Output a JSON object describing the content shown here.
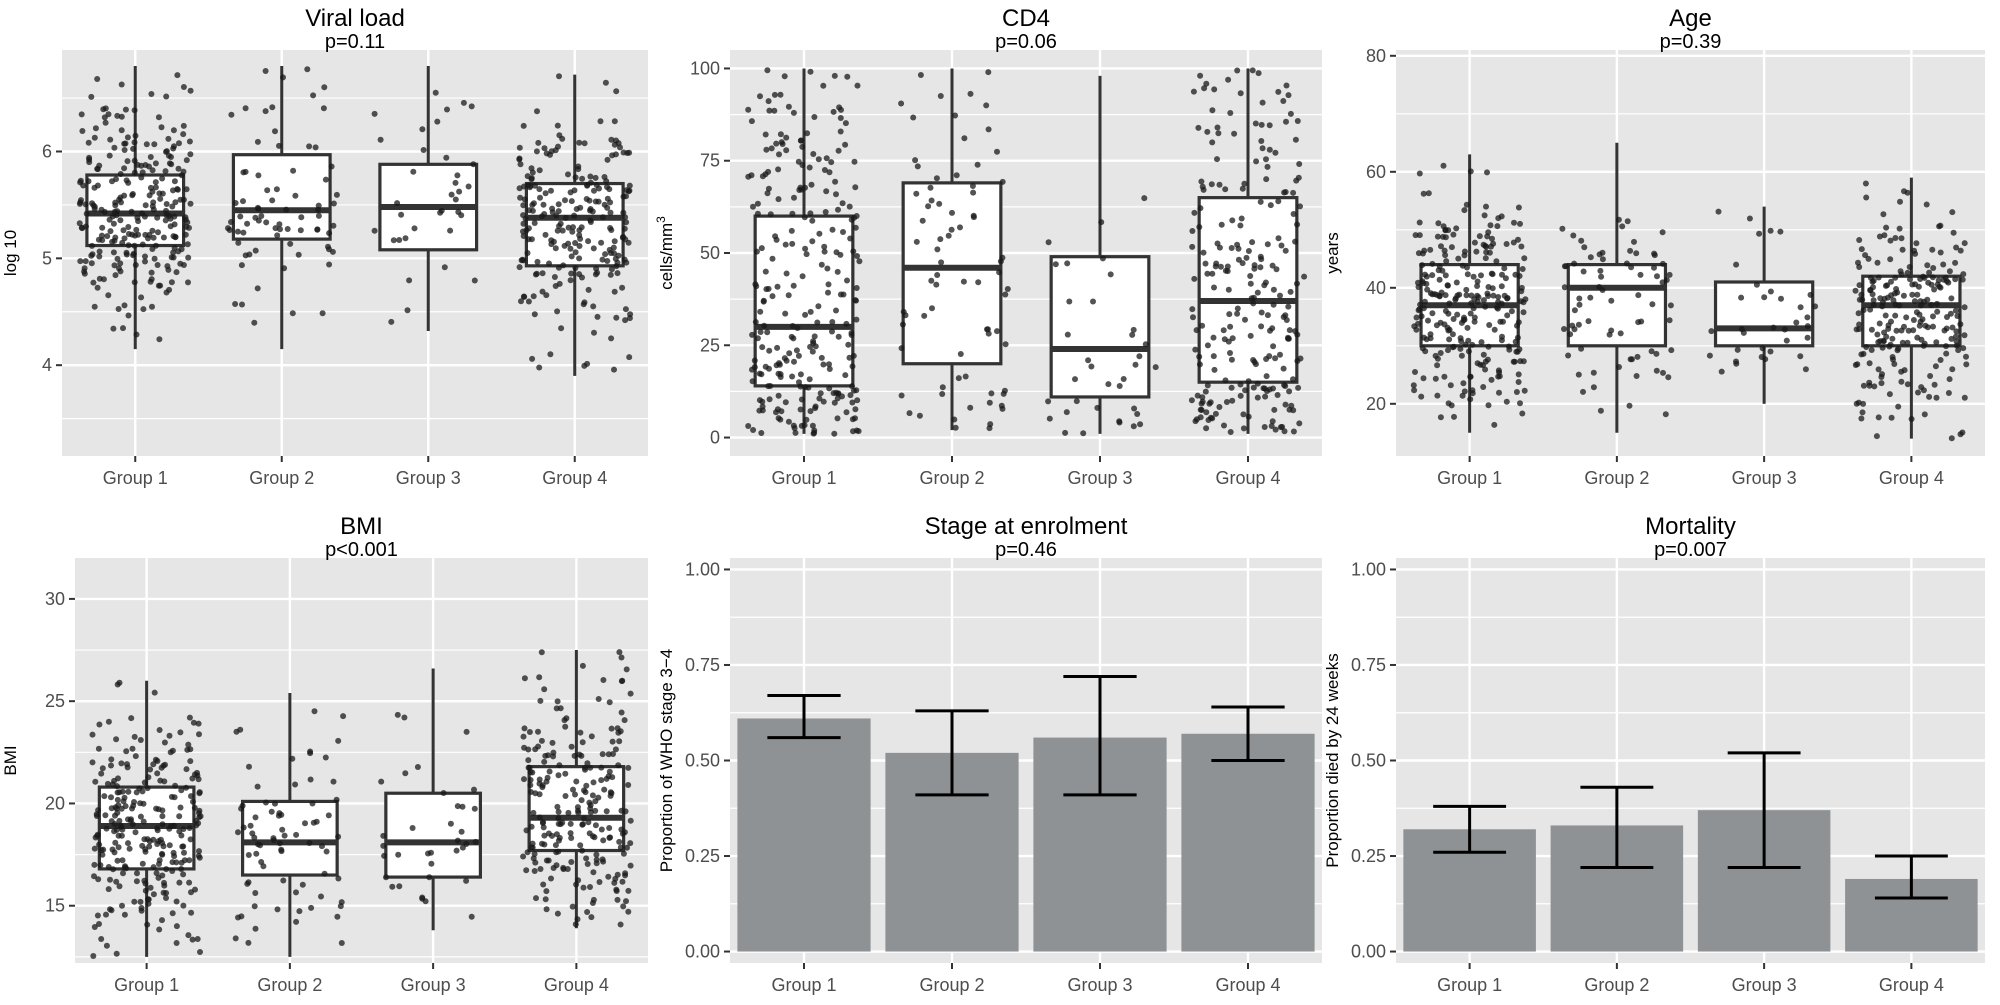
{
  "chart_data": [
    {
      "type": "boxplot",
      "title": "Viral load",
      "subtitle": "p=0.11",
      "ylabel": "log 10",
      "ylim": [
        3.15,
        6.95
      ],
      "yticks": [
        4,
        5,
        6
      ],
      "categories": [
        "Group 1",
        "Group 2",
        "Group 3",
        "Group 4"
      ],
      "boxes": [
        {
          "q1": 5.12,
          "median": 5.42,
          "q3": 5.78,
          "whisker_low": 4.15,
          "whisker_high": 6.8
        },
        {
          "q1": 5.18,
          "median": 5.45,
          "q3": 5.97,
          "whisker_low": 4.15,
          "whisker_high": 6.8
        },
        {
          "q1": 5.08,
          "median": 5.48,
          "q3": 5.88,
          "whisker_low": 4.32,
          "whisker_high": 6.8
        },
        {
          "q1": 4.93,
          "median": 5.38,
          "q3": 5.7,
          "whisker_low": 3.9,
          "whisker_high": 6.72
        }
      ],
      "n_points": [
        260,
        75,
        35,
        230
      ]
    },
    {
      "type": "boxplot",
      "title": "CD4",
      "subtitle": "p=0.06",
      "ylabel": "cells/mm",
      "ylabel_sup": "3",
      "ylim": [
        -5,
        105
      ],
      "yticks": [
        0,
        25,
        50,
        75,
        100
      ],
      "categories": [
        "Group 1",
        "Group 2",
        "Group 3",
        "Group 4"
      ],
      "boxes": [
        {
          "q1": 14,
          "median": 30,
          "q3": 60,
          "whisker_low": 1,
          "whisker_high": 100
        },
        {
          "q1": 20,
          "median": 46,
          "q3": 69,
          "whisker_low": 2,
          "whisker_high": 100
        },
        {
          "q1": 11,
          "median": 24,
          "q3": 49,
          "whisker_low": 1,
          "whisker_high": 98
        },
        {
          "q1": 15,
          "median": 37,
          "q3": 65,
          "whisker_low": 1,
          "whisker_high": 100
        }
      ],
      "n_points": [
        260,
        75,
        35,
        230
      ]
    },
    {
      "type": "boxplot",
      "title": "Age",
      "subtitle": "p=0.39",
      "ylabel": "years",
      "ylim": [
        11,
        81
      ],
      "yticks": [
        20,
        40,
        60,
        80
      ],
      "categories": [
        "Group 1",
        "Group 2",
        "Group 3",
        "Group 4"
      ],
      "boxes": [
        {
          "q1": 30,
          "median": 37,
          "q3": 44,
          "whisker_low": 15,
          "whisker_high": 63
        },
        {
          "q1": 30,
          "median": 40,
          "q3": 44,
          "whisker_low": 15,
          "whisker_high": 65
        },
        {
          "q1": 30,
          "median": 33,
          "q3": 41,
          "whisker_low": 20,
          "whisker_high": 54
        },
        {
          "q1": 30,
          "median": 37,
          "q3": 42,
          "whisker_low": 14,
          "whisker_high": 59
        }
      ],
      "n_points": [
        260,
        75,
        35,
        230
      ]
    },
    {
      "type": "boxplot",
      "title": "BMI",
      "subtitle": "p<0.001",
      "ylabel": "BMI",
      "ylim": [
        12.2,
        32
      ],
      "yticks": [
        15,
        20,
        25,
        30
      ],
      "categories": [
        "Group 1",
        "Group 2",
        "Group 3",
        "Group 4"
      ],
      "boxes": [
        {
          "q1": 16.8,
          "median": 18.9,
          "q3": 20.8,
          "whisker_low": 12.5,
          "whisker_high": 26
        },
        {
          "q1": 16.5,
          "median": 18.1,
          "q3": 20.1,
          "whisker_low": 12.5,
          "whisker_high": 25.4
        },
        {
          "q1": 16.4,
          "median": 18.1,
          "q3": 20.5,
          "whisker_low": 13.8,
          "whisker_high": 26.6
        },
        {
          "q1": 17.7,
          "median": 19.3,
          "q3": 21.8,
          "whisker_low": 13.9,
          "whisker_high": 27.5
        }
      ],
      "n_points": [
        260,
        75,
        35,
        230
      ]
    },
    {
      "type": "bar",
      "title": "Stage at enrolment",
      "subtitle": "p=0.46",
      "ylabel": "Proportion of WHO stage 3−4",
      "ylim": [
        -0.03,
        1.03
      ],
      "yticks": [
        0.0,
        0.25,
        0.5,
        0.75,
        1.0
      ],
      "ytick_labels": [
        "0.00",
        "0.25",
        "0.50",
        "0.75",
        "1.00"
      ],
      "categories": [
        "Group 1",
        "Group 2",
        "Group 3",
        "Group 4"
      ],
      "values": [
        0.61,
        0.52,
        0.56,
        0.57
      ],
      "error_low": [
        0.56,
        0.41,
        0.41,
        0.5
      ],
      "error_high": [
        0.67,
        0.63,
        0.72,
        0.64
      ]
    },
    {
      "type": "bar",
      "title": "Mortality",
      "subtitle": "p=0.007",
      "ylabel": "Proportion died by 24 weeks",
      "ylim": [
        -0.03,
        1.03
      ],
      "yticks": [
        0.0,
        0.25,
        0.5,
        0.75,
        1.0
      ],
      "ytick_labels": [
        "0.00",
        "0.25",
        "0.50",
        "0.75",
        "1.00"
      ],
      "categories": [
        "Group 1",
        "Group 2",
        "Group 3",
        "Group 4"
      ],
      "values": [
        0.32,
        0.33,
        0.37,
        0.19
      ],
      "error_low": [
        0.26,
        0.22,
        0.22,
        0.14
      ],
      "error_high": [
        0.38,
        0.43,
        0.52,
        0.25
      ]
    }
  ],
  "colors": {
    "panel_bg": "#e6e6e6",
    "grid": "#ffffff",
    "bar_fill": "#8e9294",
    "box_line": "#333333",
    "point": "#1a1a1a",
    "tick_text": "#4d4d4d"
  }
}
